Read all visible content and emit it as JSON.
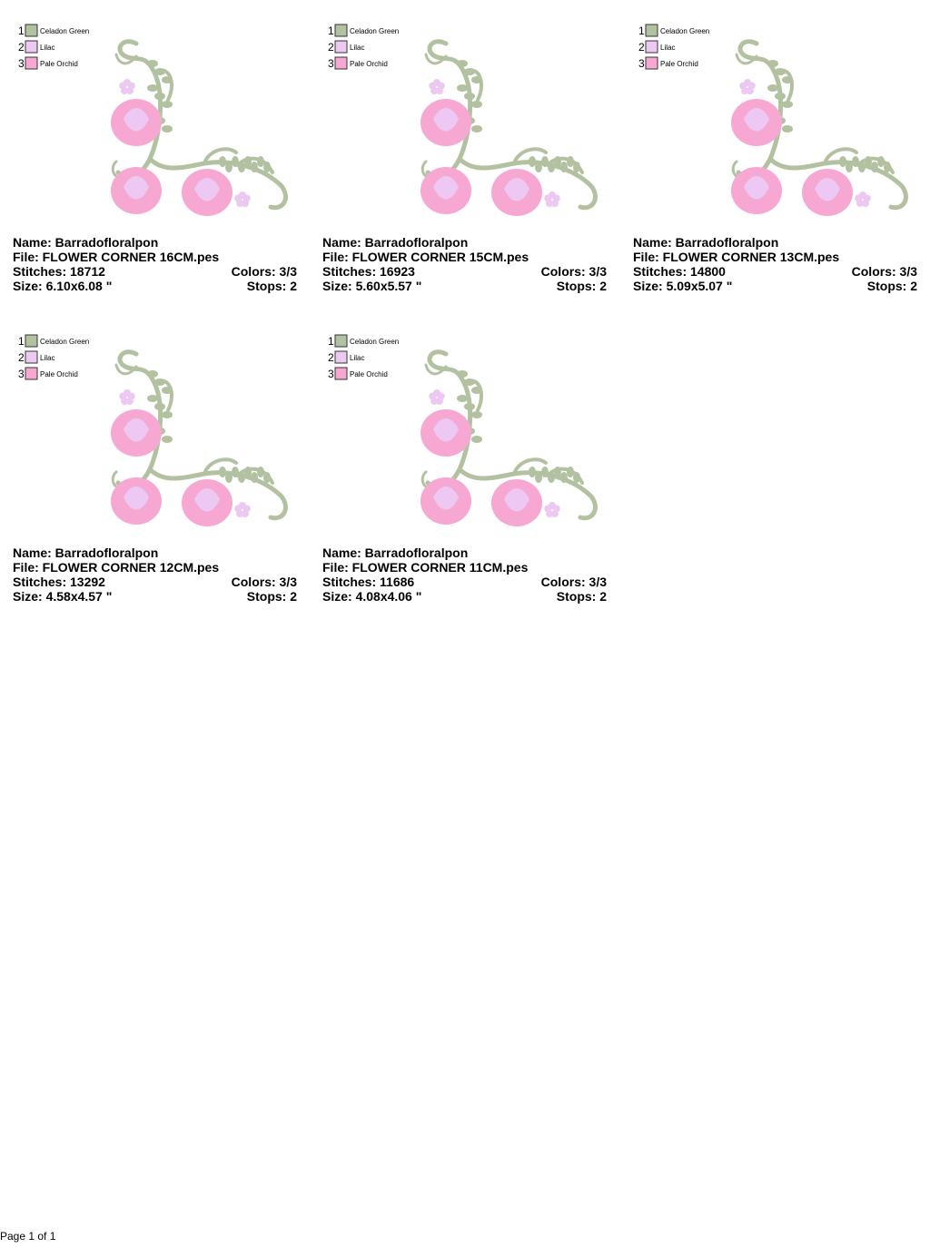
{
  "designs": [
    {
      "legend": [
        {
          "number": "1",
          "name": "Celadon Green",
          "color": "#b2c2a0"
        },
        {
          "number": "2",
          "name": "Lilac",
          "color": "#ecc8f2"
        },
        {
          "number": "3",
          "name": "Pale Orchid",
          "color": "#f7a8d2"
        }
      ],
      "name": "Name: Barradofloralpon",
      "file": "File: FLOWER CORNER 16CM.pes",
      "stitches": "Stitches: 18712",
      "colors": "Colors: 3/3",
      "size": "Size: 6.10x6.08 \"",
      "stops": "Stops: 2"
    },
    {
      "legend": [
        {
          "number": "1",
          "name": "Celadon Green",
          "color": "#b2c2a0"
        },
        {
          "number": "2",
          "name": "Lilac",
          "color": "#ecc8f2"
        },
        {
          "number": "3",
          "name": "Pale Orchid",
          "color": "#f7a8d2"
        }
      ],
      "name": "Name: Barradofloralpon",
      "file": "File: FLOWER CORNER 15CM.pes",
      "stitches": "Stitches: 16923",
      "colors": "Colors: 3/3",
      "size": "Size: 5.60x5.57 \"",
      "stops": "Stops: 2"
    },
    {
      "legend": [
        {
          "number": "1",
          "name": "Celadon Green",
          "color": "#b2c2a0"
        },
        {
          "number": "2",
          "name": "Lilac",
          "color": "#ecc8f2"
        },
        {
          "number": "3",
          "name": "Pale Orchid",
          "color": "#f7a8d2"
        }
      ],
      "name": "Name: Barradofloralpon",
      "file": "File: FLOWER CORNER 13CM.pes",
      "stitches": "Stitches: 14800",
      "colors": "Colors: 3/3",
      "size": "Size: 5.09x5.07 \"",
      "stops": "Stops: 2"
    },
    {
      "legend": [
        {
          "number": "1",
          "name": "Celadon Green",
          "color": "#b2c2a0"
        },
        {
          "number": "2",
          "name": "Lilac",
          "color": "#ecc8f2"
        },
        {
          "number": "3",
          "name": "Pale Orchid",
          "color": "#f7a8d2"
        }
      ],
      "name": "Name: Barradofloralpon",
      "file": "File: FLOWER CORNER 12CM.pes",
      "stitches": "Stitches: 13292",
      "colors": "Colors: 3/3",
      "size": "Size: 4.58x4.57 \"",
      "stops": "Stops: 2"
    },
    {
      "legend": [
        {
          "number": "1",
          "name": "Celadon Green",
          "color": "#b2c2a0"
        },
        {
          "number": "2",
          "name": "Lilac",
          "color": "#ecc8f2"
        },
        {
          "number": "3",
          "name": "Pale Orchid",
          "color": "#f7a8d2"
        }
      ],
      "name": "Name: Barradofloralpon",
      "file": "File: FLOWER CORNER 11CM.pes",
      "stitches": "Stitches: 11686",
      "colors": "Colors: 3/3",
      "size": "Size: 4.08x4.06 \"",
      "stops": "Stops: 2"
    }
  ],
  "footer": "Page 1 of 1"
}
